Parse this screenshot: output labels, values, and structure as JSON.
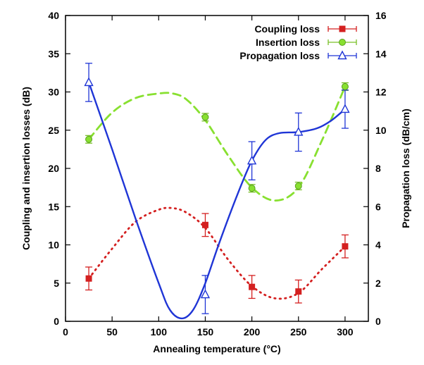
{
  "chart_data": {
    "type": "line",
    "xlabel": "Annealing temperature (°C)",
    "ylabel": "Coupling and insertion losses (dB)",
    "y2label": "Propagation loss (dB/cm)",
    "xlim": [
      0,
      325
    ],
    "ylim": [
      0,
      40
    ],
    "y2lim": [
      0,
      16
    ],
    "xticks": [
      "0",
      "50",
      "100",
      "150",
      "200",
      "250",
      "300"
    ],
    "yticks": [
      "0",
      "5",
      "10",
      "15",
      "20",
      "25",
      "30",
      "35",
      "40"
    ],
    "y2ticks": [
      "0",
      "2",
      "4",
      "6",
      "8",
      "10",
      "12",
      "14",
      "16"
    ],
    "grid": false,
    "legend_position": "top-right",
    "series": [
      {
        "name": "Coupling loss",
        "axis": "left",
        "color": "#d42020",
        "marker": "square",
        "line_style": "dotted",
        "points": [
          {
            "x": 25,
            "y": 5.6,
            "err": 1.5
          },
          {
            "x": 150,
            "y": 12.6,
            "err": 1.5
          },
          {
            "x": 200,
            "y": 4.5,
            "err": 1.5
          },
          {
            "x": 250,
            "y": 3.9,
            "err": 1.5
          },
          {
            "x": 300,
            "y": 9.8,
            "err": 1.5
          }
        ],
        "fit": [
          [
            25,
            5.6
          ],
          [
            50,
            9.5
          ],
          [
            75,
            13.0
          ],
          [
            100,
            14.6
          ],
          [
            115,
            14.8
          ],
          [
            130,
            14.2
          ],
          [
            150,
            12.2
          ],
          [
            175,
            8.0
          ],
          [
            200,
            4.6
          ],
          [
            225,
            3.0
          ],
          [
            250,
            3.7
          ],
          [
            275,
            6.8
          ],
          [
            300,
            9.8
          ]
        ]
      },
      {
        "name": "Insertion loss",
        "axis": "left",
        "color": "#88e030",
        "marker": "circle",
        "line_style": "dashed",
        "points": [
          {
            "x": 25,
            "y": 23.8,
            "err": 0.5
          },
          {
            "x": 150,
            "y": 26.7,
            "err": 0.5
          },
          {
            "x": 200,
            "y": 17.4,
            "err": 0.5
          },
          {
            "x": 250,
            "y": 17.7,
            "err": 0.5
          },
          {
            "x": 300,
            "y": 30.7,
            "err": 0.5
          }
        ],
        "fit": [
          [
            25,
            23.8
          ],
          [
            50,
            27.3
          ],
          [
            75,
            29.2
          ],
          [
            100,
            29.8
          ],
          [
            115,
            29.8
          ],
          [
            130,
            29.0
          ],
          [
            150,
            26.3
          ],
          [
            175,
            21.6
          ],
          [
            200,
            17.5
          ],
          [
            225,
            15.8
          ],
          [
            250,
            17.5
          ],
          [
            275,
            23.6
          ],
          [
            300,
            30.7
          ]
        ]
      },
      {
        "name": "Propagation loss",
        "axis": "right",
        "color": "#1f35d6",
        "marker": "triangle",
        "line_style": "solid",
        "points": [
          {
            "x": 25,
            "y": 12.5,
            "err": 1.0
          },
          {
            "x": 150,
            "y": 1.4,
            "err": 1.0
          },
          {
            "x": 200,
            "y": 8.4,
            "err": 1.0
          },
          {
            "x": 250,
            "y": 9.9,
            "err": 1.0
          },
          {
            "x": 300,
            "y": 11.1,
            "err": 1.0
          }
        ],
        "fit": [
          [
            25,
            12.5
          ],
          [
            50,
            9.0
          ],
          [
            75,
            5.4
          ],
          [
            100,
            2.0
          ],
          [
            112,
            0.6
          ],
          [
            125,
            0.15
          ],
          [
            137,
            0.6
          ],
          [
            150,
            2.0
          ],
          [
            165,
            4.1
          ],
          [
            185,
            6.7
          ],
          [
            200,
            8.4
          ],
          [
            215,
            9.5
          ],
          [
            230,
            9.85
          ],
          [
            250,
            9.9
          ],
          [
            270,
            10.1
          ],
          [
            285,
            10.5
          ],
          [
            300,
            11.1
          ]
        ]
      }
    ]
  }
}
